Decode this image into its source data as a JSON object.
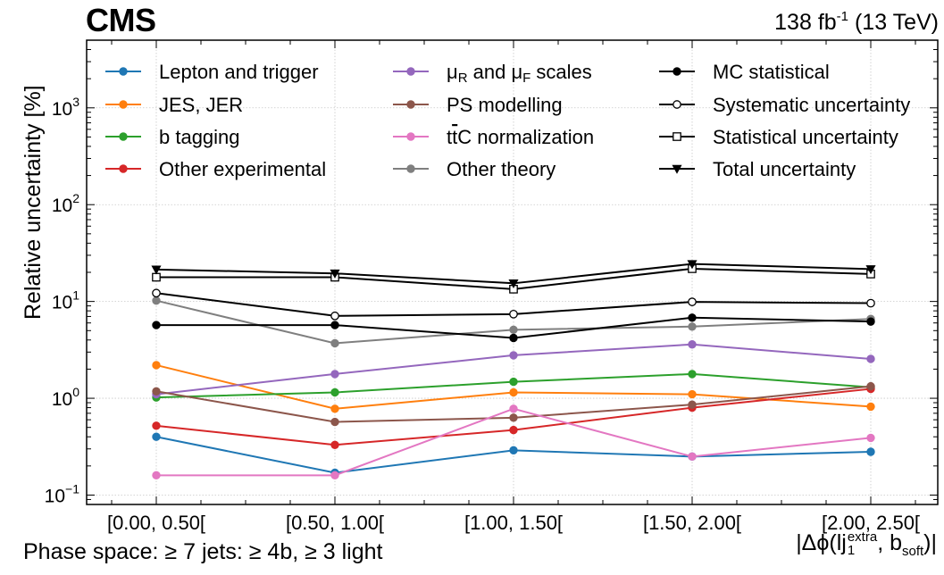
{
  "header": {
    "experiment": "CMS",
    "lumi_text": "138 fb",
    "lumi_sup": "-1",
    "lumi_suffix": " (13 TeV)"
  },
  "phase_space": "Phase space: ≥ 7 jets: ≥ 4b, ≥ 3 light",
  "xlabel_parts": {
    "prefix": "|Δϕ(lj",
    "sup": "extra",
    "sub": "1",
    "middle": ", b",
    "sub2": "soft",
    "suffix": ")|"
  },
  "chart_data": {
    "type": "line",
    "title": "",
    "xlabel": "|Δϕ(lj1extra, bsoft)|",
    "ylabel": "Relative uncertainty [%]",
    "yscale": "log",
    "ylim": [
      0.08,
      5000
    ],
    "grid": true,
    "legend_position": "top",
    "categories": [
      "[0.00, 0.50[",
      "[0.50, 1.00[",
      "[1.00, 1.50[",
      "[1.50, 2.00[",
      "[2.00, 2.50["
    ],
    "y_ticks": [
      {
        "value": 0.1,
        "base": "10",
        "exp": "−1"
      },
      {
        "value": 1,
        "base": "10",
        "exp": "0"
      },
      {
        "value": 10,
        "base": "10",
        "exp": "1"
      },
      {
        "value": 100,
        "base": "10",
        "exp": "2"
      },
      {
        "value": 1000,
        "base": "10",
        "exp": "3"
      }
    ],
    "series": [
      {
        "name": "Lepton and trigger",
        "color": "#1f77b4",
        "marker": "dot",
        "values": [
          0.4,
          0.17,
          0.29,
          0.25,
          0.28
        ]
      },
      {
        "name": "JES, JER",
        "color": "#ff7f0e",
        "marker": "dot",
        "values": [
          2.2,
          0.78,
          1.15,
          1.1,
          0.82
        ]
      },
      {
        "name": "b tagging",
        "color": "#2ca02c",
        "marker": "dot",
        "values": [
          1.02,
          1.15,
          1.48,
          1.78,
          1.3
        ]
      },
      {
        "name": "Other experimental",
        "color": "#d62728",
        "marker": "dot",
        "values": [
          0.52,
          0.33,
          0.47,
          0.8,
          1.25
        ]
      },
      {
        "name": "μR and μF scales",
        "color": "#9467bd",
        "marker": "dot",
        "values": [
          1.1,
          1.78,
          2.78,
          3.6,
          2.55
        ]
      },
      {
        "name": "PS modelling",
        "color": "#8c564b",
        "marker": "dot",
        "values": [
          1.18,
          0.57,
          0.63,
          0.86,
          1.33
        ]
      },
      {
        "name": "t̅tC normalization",
        "color": "#e377c2",
        "marker": "dot",
        "values": [
          0.16,
          0.16,
          0.78,
          0.25,
          0.39
        ]
      },
      {
        "name": "Other theory",
        "color": "#7f7f7f",
        "marker": "dot",
        "values": [
          10.2,
          3.7,
          5.1,
          5.5,
          6.6
        ]
      },
      {
        "name": "MC statistical",
        "color": "#000000",
        "marker": "dot",
        "values": [
          5.7,
          5.7,
          4.2,
          6.8,
          6.2
        ]
      },
      {
        "name": "Systematic uncertainty",
        "color": "#000000",
        "marker": "open-circle",
        "values": [
          12.2,
          7.1,
          7.4,
          9.9,
          9.6
        ]
      },
      {
        "name": "Statistical uncertainty",
        "color": "#000000",
        "marker": "open-square",
        "values": [
          17.8,
          17.8,
          13.4,
          21.8,
          19.2
        ]
      },
      {
        "name": "Total uncertainty",
        "color": "#000000",
        "marker": "triangle-down",
        "values": [
          21.4,
          19.5,
          15.4,
          24.4,
          21.6
        ]
      }
    ],
    "legend": {
      "columns": [
        [
          {
            "series": 0,
            "text": "Lepton and trigger"
          },
          {
            "series": 1,
            "text": "JES, JER"
          },
          {
            "series": 2,
            "text": "b tagging"
          },
          {
            "series": 3,
            "text": "Other experimental"
          }
        ],
        [
          {
            "series": 4,
            "parts": [
              {
                "t": "μ"
              },
              {
                "t": "R",
                "sub": true
              },
              {
                "t": " and μ"
              },
              {
                "t": "F",
                "sub": true
              },
              {
                "t": " scales"
              }
            ]
          },
          {
            "series": 5,
            "text": "PS modelling"
          },
          {
            "series": 6,
            "parts": [
              {
                "t": "t"
              },
              {
                "t": "t",
                "over": true
              },
              {
                "t": "C normalization"
              }
            ]
          },
          {
            "series": 7,
            "text": "Other theory"
          }
        ],
        [
          {
            "series": 8,
            "text": "MC statistical"
          },
          {
            "series": 9,
            "text": "Systematic uncertainty"
          },
          {
            "series": 10,
            "text": "Statistical uncertainty"
          },
          {
            "series": 11,
            "text": "Total uncertainty"
          }
        ]
      ]
    }
  }
}
